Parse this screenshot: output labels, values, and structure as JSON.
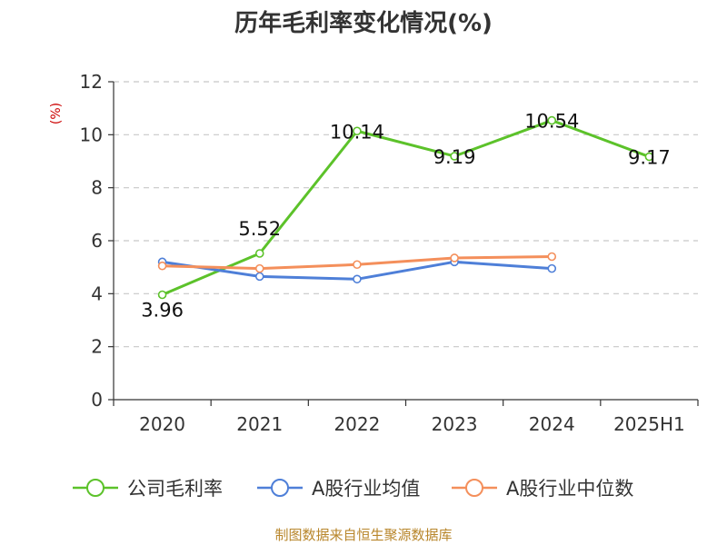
{
  "chart_data": {
    "type": "line",
    "title": "历年毛利率变化情况(%)",
    "ylabel": "(%)",
    "xlabel": "",
    "categories": [
      "2020",
      "2021",
      "2022",
      "2023",
      "2024",
      "2025H1"
    ],
    "ylim": [
      0,
      12
    ],
    "yticks": [
      0,
      2,
      4,
      6,
      8,
      10,
      12
    ],
    "grid": true,
    "legend_position": "bottom",
    "series": [
      {
        "name": "公司毛利率",
        "color": "#5cc22a",
        "values": [
          3.96,
          5.52,
          10.14,
          9.19,
          10.54,
          9.17
        ],
        "labels": [
          "3.96",
          "5.52",
          "10.14",
          "9.19",
          "10.54",
          "9.17"
        ]
      },
      {
        "name": "A股行业均值",
        "color": "#4e7fd8",
        "values": [
          5.2,
          4.65,
          4.55,
          5.2,
          4.95,
          null
        ],
        "labels": []
      },
      {
        "name": "A股行业中位数",
        "color": "#f48f5b",
        "values": [
          5.05,
          4.95,
          5.1,
          5.35,
          5.4,
          null
        ],
        "labels": []
      }
    ],
    "source": "制图数据来自恒生聚源数据库"
  }
}
